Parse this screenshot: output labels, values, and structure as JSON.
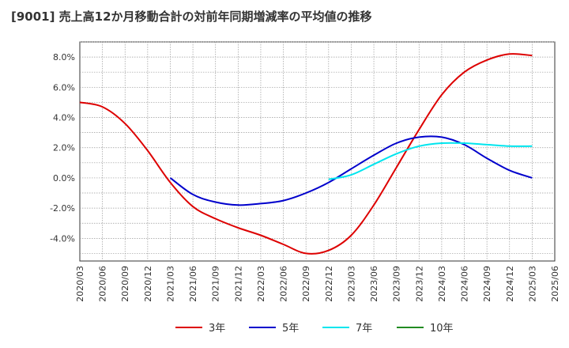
{
  "title": "[9001]  売上高12か月移動合計の対前年同期増減率の平均値の推移",
  "chart_data": {
    "type": "line",
    "title": "[9001]  売上高12か月移動合計の対前年同期増減率の平均値の推移",
    "xlabel": "",
    "ylabel": "",
    "ylim": [
      -5.5,
      9.0
    ],
    "y_ticks": [
      -4,
      -2,
      0,
      2,
      4,
      6,
      8
    ],
    "y_tick_labels": [
      "-4.0%",
      "-2.0%",
      "0.0%",
      "2.0%",
      "4.0%",
      "6.0%",
      "8.0%"
    ],
    "x_tick_labels": [
      "2020/03",
      "2020/06",
      "2020/09",
      "2020/12",
      "2021/03",
      "2021/06",
      "2021/09",
      "2021/12",
      "2022/03",
      "2022/06",
      "2022/09",
      "2022/12",
      "2023/03",
      "2023/06",
      "2023/09",
      "2023/12",
      "2024/03",
      "2024/06",
      "2024/09",
      "2024/12",
      "2025/03",
      "2025/06"
    ],
    "grid": true,
    "legend_position": "bottom",
    "series": [
      {
        "name": "3年",
        "color": "#dd0000",
        "x": [
          "2020/03",
          "2020/06",
          "2020/09",
          "2020/12",
          "2021/03",
          "2021/06",
          "2021/09",
          "2021/12",
          "2022/03",
          "2022/06",
          "2022/09",
          "2022/12",
          "2023/03",
          "2023/06",
          "2023/09",
          "2023/12",
          "2024/03",
          "2024/06",
          "2024/09",
          "2024/12",
          "2025/03"
        ],
        "values": [
          5.0,
          4.7,
          3.6,
          1.8,
          -0.3,
          -1.9,
          -2.7,
          -3.3,
          -3.8,
          -4.4,
          -5.0,
          -4.8,
          -3.8,
          -1.8,
          0.7,
          3.2,
          5.5,
          7.0,
          7.8,
          8.2,
          8.1
        ]
      },
      {
        "name": "5年",
        "color": "#0000cc",
        "x": [
          "2021/03",
          "2021/06",
          "2021/09",
          "2021/12",
          "2022/03",
          "2022/06",
          "2022/09",
          "2022/12",
          "2023/03",
          "2023/06",
          "2023/09",
          "2023/12",
          "2024/03",
          "2024/06",
          "2024/09",
          "2024/12",
          "2025/03"
        ],
        "values": [
          0.0,
          -1.1,
          -1.6,
          -1.8,
          -1.7,
          -1.5,
          -1.0,
          -0.3,
          0.6,
          1.5,
          2.3,
          2.7,
          2.7,
          2.2,
          1.3,
          0.5,
          0.0
        ]
      },
      {
        "name": "7年",
        "color": "#00e5ee",
        "x": [
          "2022/12",
          "2023/03",
          "2023/06",
          "2023/09",
          "2023/12",
          "2024/03",
          "2024/06",
          "2024/09",
          "2024/12",
          "2025/03"
        ],
        "values": [
          -0.1,
          0.2,
          0.9,
          1.6,
          2.1,
          2.3,
          2.3,
          2.2,
          2.1,
          2.1
        ]
      },
      {
        "name": "10年",
        "color": "#228b22",
        "x": [],
        "values": []
      }
    ]
  }
}
